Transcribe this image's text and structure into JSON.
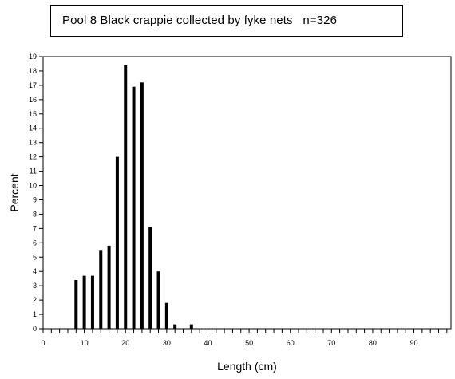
{
  "chart_data": {
    "type": "bar",
    "title": "Pool 8 Black crappie collected by fyke nets   n=326",
    "xlabel": "Length (cm)",
    "ylabel": "Percent",
    "xlim": [
      0,
      99
    ],
    "ylim": [
      0,
      19
    ],
    "x_ticks": [
      0,
      10,
      20,
      30,
      40,
      50,
      60,
      70,
      80,
      90
    ],
    "y_ticks": [
      0,
      1,
      2,
      3,
      4,
      5,
      6,
      7,
      8,
      9,
      10,
      11,
      12,
      13,
      14,
      15,
      16,
      17,
      18,
      19
    ],
    "grid": false,
    "bars": [
      {
        "x": 8,
        "value": 3.4
      },
      {
        "x": 10,
        "value": 3.7
      },
      {
        "x": 12,
        "value": 3.7
      },
      {
        "x": 14,
        "value": 5.5
      },
      {
        "x": 16,
        "value": 5.8
      },
      {
        "x": 18,
        "value": 12.0
      },
      {
        "x": 20,
        "value": 18.4
      },
      {
        "x": 22,
        "value": 16.9
      },
      {
        "x": 24,
        "value": 17.2
      },
      {
        "x": 26,
        "value": 7.1
      },
      {
        "x": 28,
        "value": 4.0
      },
      {
        "x": 30,
        "value": 1.8
      },
      {
        "x": 32,
        "value": 0.3
      },
      {
        "x": 36,
        "value": 0.3
      }
    ],
    "bar_color": "#000000"
  }
}
